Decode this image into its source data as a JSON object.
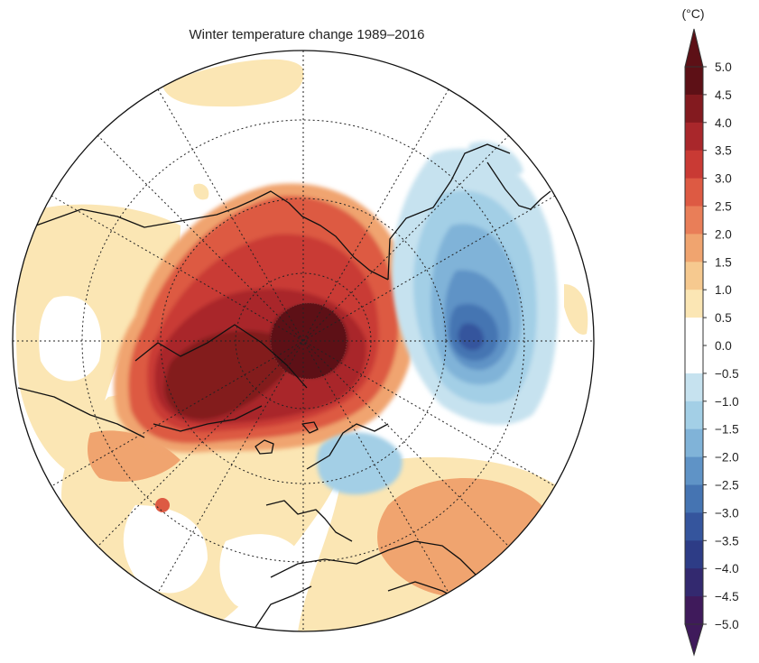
{
  "title": "Winter temperature change 1989–2016",
  "legend": {
    "unit": "(°C)",
    "ticks": [
      "5.0",
      "4.5",
      "4.0",
      "3.5",
      "3.0",
      "2.5",
      "2.0",
      "1.5",
      "1.0",
      "0.5",
      "0.0",
      "−0.5",
      "−1.0",
      "−1.5",
      "−2.0",
      "−2.5",
      "−3.0",
      "−3.5",
      "−4.0",
      "−4.5",
      "−5.0"
    ],
    "colors": [
      "#5d1016",
      "#831a1f",
      "#a9272b",
      "#c93a34",
      "#dd5a43",
      "#e97e58",
      "#f0a46f",
      "#f6c98f",
      "#fbe6b4",
      "#ffffff",
      "#ffffff",
      "#c6e2ef",
      "#a3cfe6",
      "#80b3d8",
      "#5f93c6",
      "#4574b2",
      "#35559d",
      "#2d3c86",
      "#33296f",
      "#3f1a5b"
    ]
  },
  "chart_data": {
    "type": "map",
    "projection": "north-polar-stereographic",
    "title": "Winter temperature change 1989–2016",
    "variable_unit": "°C",
    "color_range": [
      -5.0,
      5.0
    ],
    "contour_interval": 0.5,
    "regions": [
      {
        "value": 5.0,
        "color": "#5d1016"
      },
      {
        "value": 4.5,
        "color": "#831a1f"
      },
      {
        "value": 4.0,
        "color": "#a9272b"
      },
      {
        "value": 3.5,
        "color": "#c93a34"
      },
      {
        "value": 3.0,
        "color": "#dd5a43"
      },
      {
        "value": 2.0,
        "color": "#f0a46f"
      },
      {
        "value": 1.0,
        "color": "#fbe6b4"
      },
      {
        "value": -1.0,
        "color": "#a3cfe6"
      },
      {
        "value": -1.5,
        "color": "#80b3d8"
      },
      {
        "value": -2.0,
        "color": "#5f93c6"
      },
      {
        "value": -3.0,
        "color": "#35559d"
      }
    ]
  }
}
